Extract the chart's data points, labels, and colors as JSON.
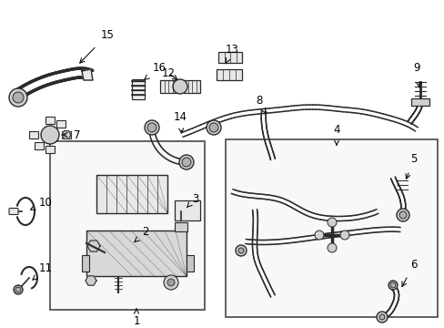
{
  "background_color": "#ffffff",
  "line_color": "#2a2a2a",
  "fig_width": 4.89,
  "fig_height": 3.6,
  "dpi": 100,
  "label_fontsize": 8.5
}
